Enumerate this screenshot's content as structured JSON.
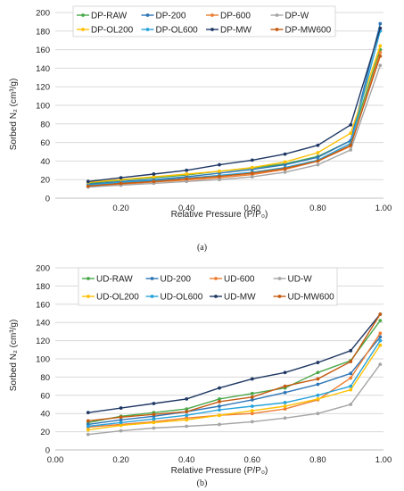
{
  "charts": {
    "chart_data": [
      {
        "type": "line",
        "panel": "a",
        "caption": "(a)",
        "ylabel": "Sorbed N₂ (cm³/g)",
        "xlabel": "Relative Pressure (P/P₀)",
        "ylim": [
          0,
          200
        ],
        "xlim": [
          0,
          1
        ],
        "yticks": [
          0,
          20,
          40,
          60,
          80,
          100,
          120,
          140,
          160,
          180,
          200
        ],
        "yticklabels": [
          "0",
          "20",
          "40",
          "60",
          "80",
          "100",
          "120",
          "140",
          "160",
          "180",
          "200"
        ],
        "xticks": [
          0.2,
          0.4,
          0.6,
          0.8,
          1.0
        ],
        "xticklabels": [
          "0.20",
          "0.40",
          "0.60",
          "0.80",
          "1.00"
        ],
        "grid": "horizontal",
        "legend": "top",
        "x": [
          0.1,
          0.2,
          0.3,
          0.4,
          0.5,
          0.6,
          0.7,
          0.8,
          0.9,
          0.99
        ],
        "series": [
          {
            "name": "DP-RAW",
            "color": "#4aa84a",
            "values": [
              16,
              19.5,
              22,
              25,
              29,
              32.5,
              37,
              45,
              62,
              160
            ]
          },
          {
            "name": "DP-200",
            "color": "#2e75b6",
            "values": [
              15,
              18,
              20,
              23,
              27,
              31,
              36,
              44,
              62,
              188
            ]
          },
          {
            "name": "DP-600",
            "color": "#ed7d31",
            "values": [
              13,
              15,
              17.5,
              19.5,
              22,
              25.5,
              31,
              40,
              56,
              157
            ]
          },
          {
            "name": "DP-W",
            "color": "#a5a5a5",
            "values": [
              12,
              14,
              16,
              18,
              20,
              23,
              28,
              36,
              52,
              143
            ]
          },
          {
            "name": "DP-OL200",
            "color": "#ffc000",
            "values": [
              17,
              20,
              23,
              26,
              29,
              33,
              39,
              49,
              70,
              164
            ]
          },
          {
            "name": "DP-OL600",
            "color": "#27a3d9",
            "values": [
              14,
              17,
              19,
              21.5,
              24.5,
              28,
              33,
              41,
              59,
              180
            ]
          },
          {
            "name": "DP-MW",
            "color": "#1f3864",
            "values": [
              18,
              22,
              26,
              30,
              36,
              41,
              47.5,
              57,
              79,
              183
            ]
          },
          {
            "name": "DP-MW600",
            "color": "#c55a11",
            "values": [
              13,
              16,
              18,
              21,
              23.5,
              27,
              32,
              40,
              57,
              153
            ]
          }
        ]
      },
      {
        "type": "line",
        "panel": "b",
        "caption": "(b)",
        "ylabel": "Sorbed N₂ (cm³/g)",
        "xlabel": "Relative Pressure (P/P₀)",
        "ylim": [
          0,
          200
        ],
        "xlim": [
          0,
          1
        ],
        "yticks": [
          0,
          20,
          40,
          60,
          80,
          100,
          120,
          140,
          160,
          180,
          200
        ],
        "yticklabels": [
          "0",
          "20",
          "40",
          "60",
          "80",
          "100",
          "120",
          "140",
          "160",
          "180",
          "200"
        ],
        "xticks": [
          0,
          0.2,
          0.4,
          0.6,
          0.8,
          1.0
        ],
        "xticklabels": [
          "0.00",
          "0.20",
          "0.40",
          "0.60",
          "0.80",
          "1.00"
        ],
        "grid": "horizontal",
        "legend": "top",
        "x": [
          0.1,
          0.2,
          0.3,
          0.4,
          0.5,
          0.6,
          0.7,
          0.8,
          0.9,
          0.99
        ],
        "series": [
          {
            "name": "UD-RAW",
            "color": "#4aa84a",
            "values": [
              30,
              37,
              41,
              45,
              56,
              62,
              68,
              85,
              98,
              142
            ]
          },
          {
            "name": "UD-200",
            "color": "#2e75b6",
            "values": [
              28,
              33,
              37,
              42,
              48,
              55,
              63,
              72,
              84,
              124
            ]
          },
          {
            "name": "UD-600",
            "color": "#ed7d31",
            "values": [
              25,
              28,
              31,
              35,
              38,
              40,
              45,
              55,
              79,
              128
            ]
          },
          {
            "name": "UD-W",
            "color": "#a5a5a5",
            "values": [
              17,
              21,
              24,
              26,
              28,
              31,
              35,
              40,
              50,
              94
            ]
          },
          {
            "name": "UD-OL200",
            "color": "#ffc000",
            "values": [
              22,
              27,
              30,
              33,
              38,
              43,
              48,
              56,
              66,
              115
            ]
          },
          {
            "name": "UD-OL600",
            "color": "#27a3d9",
            "values": [
              26,
              30,
              34,
              38,
              44,
              48,
              52,
              60,
              70,
              120
            ]
          },
          {
            "name": "UD-MW",
            "color": "#1f3864",
            "values": [
              41,
              46,
              51,
              56,
              68,
              78,
              85,
              96,
              109,
              149
            ]
          },
          {
            "name": "UD-MW600",
            "color": "#c55a11",
            "values": [
              32,
              36,
              39,
              42,
              53,
              58,
              70,
              78,
              97,
              149
            ]
          }
        ]
      }
    ]
  }
}
